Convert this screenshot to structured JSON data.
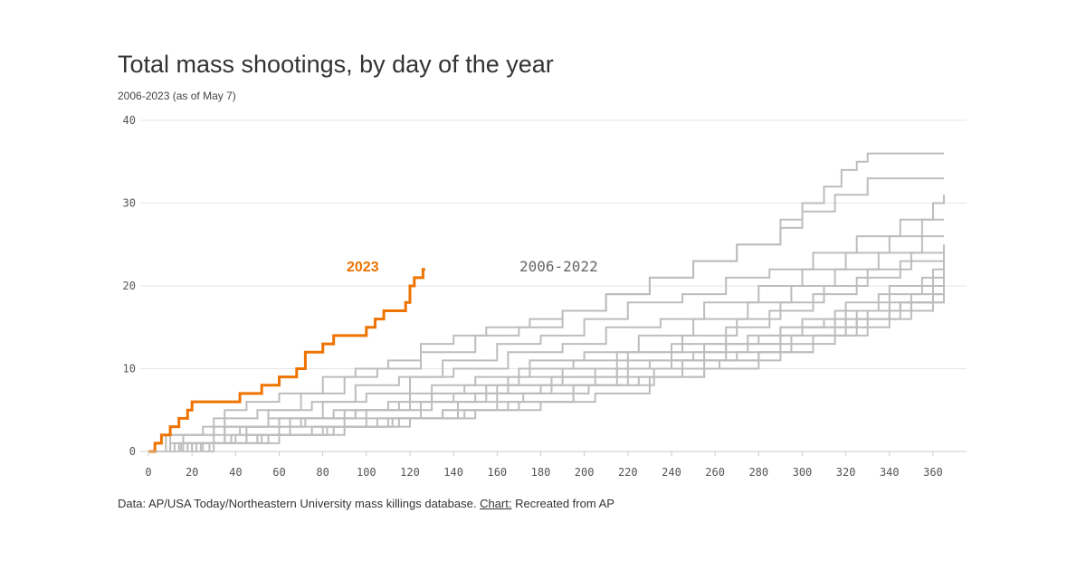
{
  "header": {
    "title": "Total mass shootings, by day of the year",
    "subtitle": "2006-2023 (as of May 7)"
  },
  "footer": {
    "data_text": "Data: AP/USA Today/Northeastern University mass killings database. ",
    "chart_label": "Chart:",
    "chart_text": " Recreated from AP"
  },
  "colors": {
    "highlight": "#ee7300",
    "history": "#bdbdbd",
    "gridline": "#e6e6e6",
    "axis": "#cccccc"
  },
  "chart_data": {
    "type": "line",
    "line_shape": "step",
    "title": "Total mass shootings, by day of the year",
    "subtitle": "2006-2023 (as of May 7)",
    "xlabel": "",
    "ylabel": "",
    "xlim": [
      0,
      365
    ],
    "ylim": [
      0,
      40
    ],
    "x_ticks": [
      0,
      20,
      40,
      60,
      80,
      100,
      120,
      140,
      160,
      180,
      200,
      220,
      240,
      260,
      280,
      300,
      320,
      340,
      360
    ],
    "y_ticks": [
      0,
      10,
      20,
      30,
      40
    ],
    "grid": "horizontal",
    "annotations": [
      {
        "text": "2023",
        "series": "2023"
      },
      {
        "text": "2006-2022",
        "series": "2006-2022"
      }
    ],
    "highlight_series": {
      "name": "2023",
      "x": [
        0,
        3,
        4,
        6,
        10,
        14,
        18,
        20,
        42,
        52,
        60,
        68,
        72,
        80,
        85,
        100,
        104,
        108,
        118,
        120,
        122,
        126,
        127
      ],
      "y": [
        0,
        1,
        1,
        2,
        3,
        4,
        5,
        6,
        7,
        8,
        9,
        10,
        12,
        13,
        14,
        15,
        16,
        17,
        18,
        20,
        21,
        22,
        22
      ]
    },
    "history_series_label": "2006-2022",
    "history_series": [
      {
        "x": [
          0,
          8,
          25,
          35,
          45,
          60,
          80,
          95,
          110,
          125,
          140,
          155,
          175,
          190,
          210,
          230,
          250,
          270,
          290,
          300,
          310,
          318,
          325,
          330,
          365
        ],
        "y": [
          0,
          2,
          3,
          5,
          6,
          7,
          9,
          10,
          11,
          13,
          14,
          15,
          16,
          17,
          19,
          21,
          23,
          25,
          28,
          30,
          32,
          34,
          35,
          36,
          36
        ]
      },
      {
        "x": [
          0,
          10,
          30,
          50,
          70,
          90,
          105,
          125,
          150,
          170,
          190,
          210,
          230,
          250,
          270,
          290,
          300,
          315,
          330,
          365
        ],
        "y": [
          0,
          2,
          4,
          5,
          7,
          9,
          10,
          12,
          14,
          15,
          17,
          19,
          21,
          23,
          25,
          27,
          29,
          31,
          33,
          33
        ]
      },
      {
        "x": [
          0,
          12,
          30,
          55,
          75,
          95,
          115,
          135,
          160,
          180,
          200,
          220,
          245,
          265,
          285,
          305,
          325,
          345,
          360,
          365
        ],
        "y": [
          0,
          1,
          3,
          5,
          6,
          8,
          9,
          11,
          13,
          14,
          16,
          18,
          19,
          21,
          22,
          24,
          26,
          28,
          30,
          31
        ]
      },
      {
        "x": [
          0,
          15,
          35,
          55,
          80,
          100,
          120,
          140,
          165,
          190,
          210,
          235,
          255,
          280,
          300,
          320,
          340,
          355,
          365
        ],
        "y": [
          0,
          1,
          3,
          4,
          6,
          7,
          9,
          10,
          12,
          13,
          15,
          16,
          18,
          20,
          22,
          24,
          26,
          28,
          28
        ]
      },
      {
        "x": [
          0,
          18,
          38,
          60,
          85,
          110,
          130,
          150,
          175,
          200,
          225,
          250,
          275,
          295,
          315,
          335,
          355,
          365
        ],
        "y": [
          0,
          1,
          2,
          4,
          5,
          6,
          8,
          9,
          11,
          12,
          14,
          16,
          18,
          20,
          22,
          24,
          26,
          26
        ]
      },
      {
        "x": [
          0,
          20,
          45,
          70,
          95,
          120,
          145,
          170,
          195,
          220,
          245,
          270,
          290,
          310,
          330,
          350,
          365
        ],
        "y": [
          0,
          1,
          3,
          4,
          5,
          7,
          8,
          10,
          11,
          12,
          14,
          16,
          18,
          20,
          22,
          24,
          25
        ]
      },
      {
        "x": [
          0,
          14,
          40,
          65,
          90,
          115,
          140,
          165,
          190,
          215,
          240,
          265,
          285,
          305,
          325,
          345,
          365
        ],
        "y": [
          0,
          1,
          2,
          3,
          5,
          6,
          7,
          9,
          10,
          12,
          13,
          15,
          17,
          19,
          21,
          23,
          24
        ]
      },
      {
        "x": [
          0,
          22,
          50,
          75,
          100,
          125,
          150,
          180,
          205,
          230,
          255,
          280,
          300,
          320,
          340,
          360,
          365
        ],
        "y": [
          0,
          1,
          2,
          3,
          4,
          6,
          7,
          8,
          10,
          11,
          13,
          14,
          16,
          18,
          20,
          22,
          23
        ]
      },
      {
        "x": [
          0,
          25,
          50,
          80,
          110,
          135,
          160,
          185,
          215,
          240,
          265,
          290,
          315,
          335,
          355,
          365
        ],
        "y": [
          0,
          1,
          2,
          3,
          4,
          5,
          7,
          8,
          10,
          11,
          13,
          15,
          17,
          19,
          21,
          22
        ]
      },
      {
        "x": [
          0,
          28,
          55,
          85,
          115,
          145,
          170,
          195,
          220,
          245,
          270,
          295,
          320,
          340,
          360,
          365
        ],
        "y": [
          0,
          1,
          2,
          3,
          4,
          5,
          6,
          8,
          9,
          11,
          12,
          14,
          16,
          18,
          20,
          21
        ]
      },
      {
        "x": [
          0,
          30,
          60,
          90,
          120,
          150,
          180,
          205,
          230,
          255,
          280,
          305,
          325,
          345,
          360,
          365
        ],
        "y": [
          0,
          1,
          2,
          3,
          4,
          5,
          6,
          7,
          9,
          10,
          12,
          14,
          16,
          18,
          19,
          20
        ]
      },
      {
        "x": [
          0,
          20,
          45,
          75,
          105,
          135,
          165,
          195,
          225,
          255,
          280,
          305,
          330,
          350,
          365
        ],
        "y": [
          0,
          1,
          2,
          3,
          4,
          5,
          6,
          8,
          9,
          11,
          12,
          14,
          16,
          18,
          19
        ]
      },
      {
        "x": [
          0,
          10,
          35,
          65,
          95,
          125,
          155,
          185,
          215,
          240,
          265,
          290,
          310,
          330,
          350,
          365
        ],
        "y": [
          0,
          1,
          3,
          4,
          5,
          6,
          8,
          9,
          10,
          12,
          13,
          15,
          16,
          17,
          19,
          20
        ]
      },
      {
        "x": [
          0,
          16,
          42,
          72,
          100,
          130,
          160,
          190,
          220,
          250,
          275,
          300,
          325,
          345,
          365
        ],
        "y": [
          0,
          2,
          3,
          4,
          5,
          7,
          8,
          9,
          11,
          12,
          14,
          15,
          17,
          18,
          19
        ]
      },
      {
        "x": [
          0,
          24,
          52,
          82,
          112,
          142,
          172,
          202,
          232,
          262,
          290,
          315,
          340,
          360,
          365
        ],
        "y": [
          0,
          1,
          2,
          3,
          4,
          6,
          7,
          8,
          10,
          11,
          13,
          15,
          17,
          19,
          20
        ]
      }
    ]
  }
}
